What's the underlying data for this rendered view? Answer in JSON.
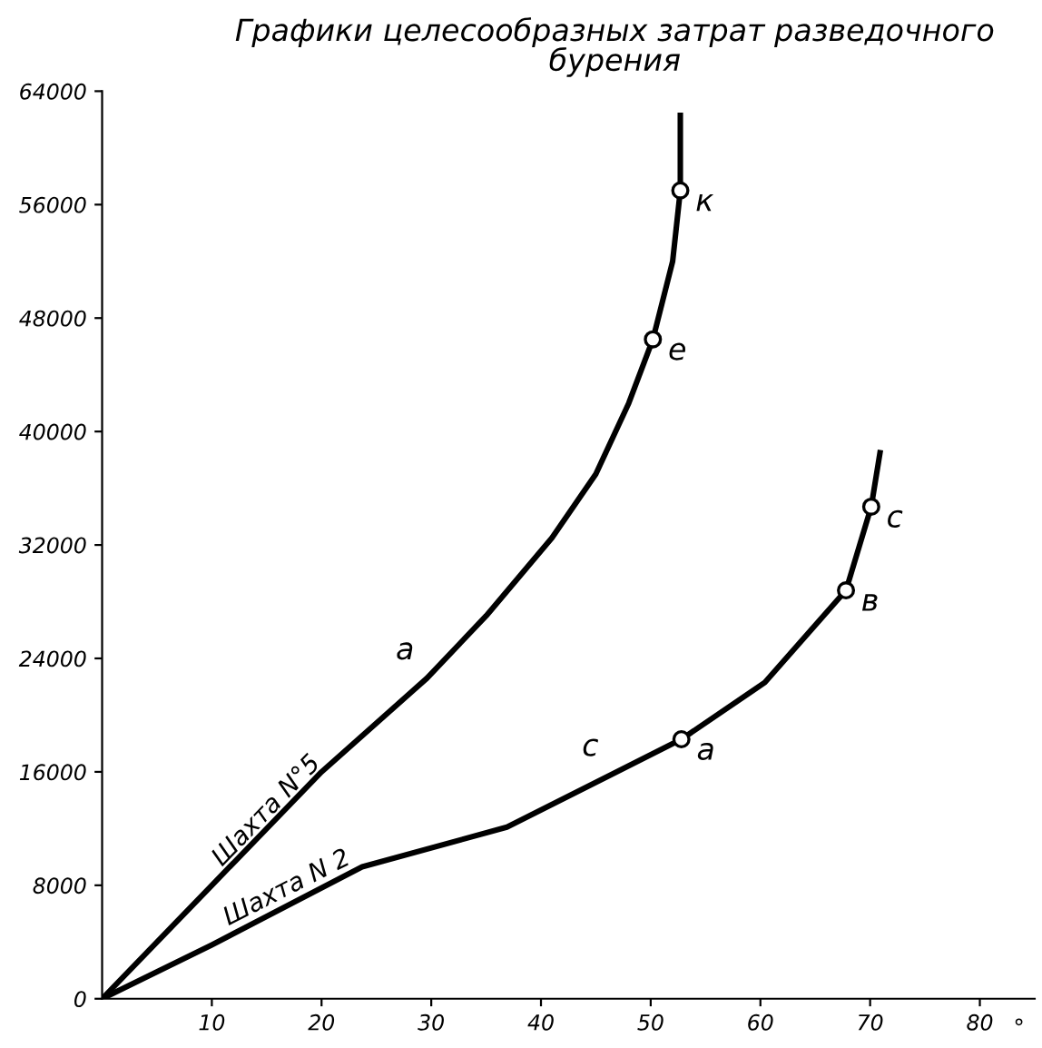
{
  "chart_data": {
    "type": "line",
    "title": "Графики целесообразных затрат разведочного\nбурения",
    "xlabel": "°",
    "series": [
      {
        "name": "Шахта N°5",
        "color": "#000000",
        "x": [
          0,
          10,
          20,
          29.6,
          35,
          41,
          45,
          48,
          50.2,
          52,
          52.7,
          52.7
        ],
        "values": [
          0,
          8000,
          16000,
          22600,
          27000,
          32500,
          37000,
          42000,
          46500,
          52000,
          57000,
          62300
        ]
      },
      {
        "name": "Шахта N 2",
        "color": "#000000",
        "x": [
          0,
          10,
          23.7,
          36.9,
          46.4,
          52.8,
          60.4,
          67.8,
          70.1,
          70.9
        ],
        "values": [
          0,
          3800,
          9300,
          12100,
          15800,
          18300,
          22300,
          28800,
          34700,
          38500
        ]
      },
      {
        "type": "scatter",
        "color": "#000000",
        "marker": "circle",
        "x": [
          52.7,
          50.2,
          52.8,
          67.8,
          70.1
        ],
        "values": [
          57000,
          46500,
          18300,
          28800,
          34700
        ]
      }
    ],
    "annotations": [
      {
        "text": "к",
        "x": 52.7,
        "y": 57000
      },
      {
        "text": "е",
        "x": 50.2,
        "y": 46500
      },
      {
        "text": "а",
        "x": 29.6,
        "y": 22600
      },
      {
        "text": "с",
        "x": 46.4,
        "y": 15800
      },
      {
        "text": "а",
        "x": 52.8,
        "y": 18300
      },
      {
        "text": "в",
        "x": 67.8,
        "y": 28800
      },
      {
        "text": "с",
        "x": 70.1,
        "y": 34700
      }
    ],
    "xlim": [
      0,
      85
    ],
    "xticks": [
      10,
      20,
      30,
      40,
      50,
      60,
      70,
      80
    ],
    "ylim": [
      0,
      64000
    ],
    "yticks": [
      0,
      8000,
      16000,
      24000,
      32000,
      40000,
      48000,
      56000,
      64000
    ],
    "grid": false,
    "legend": false,
    "marker": "none",
    "line_style": "solid"
  }
}
